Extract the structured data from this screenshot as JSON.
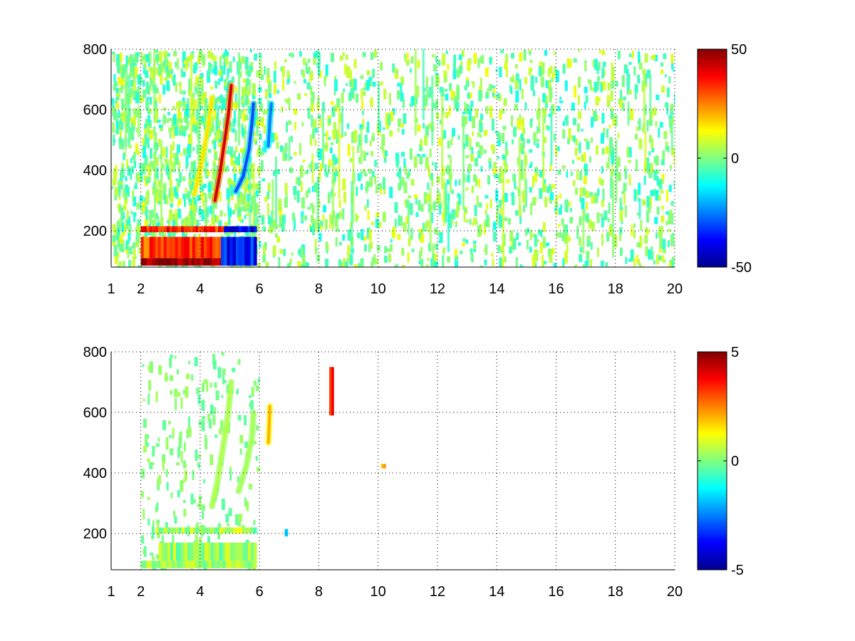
{
  "chart_data": [
    {
      "type": "heatmap",
      "title": "",
      "xlabel": "",
      "ylabel": "",
      "xlim": [
        1,
        20
      ],
      "ylim": [
        80,
        800
      ],
      "x_ticks": [
        1,
        2,
        4,
        6,
        8,
        10,
        12,
        14,
        16,
        18,
        20
      ],
      "y_ticks": [
        200,
        400,
        600,
        800
      ],
      "grid": true,
      "colormap": "jet",
      "clim": [
        -50,
        50
      ],
      "colorbar_ticks": [
        50,
        0,
        -50
      ],
      "features": [
        {
          "kind": "band",
          "x": [
            2.0,
            5.9
          ],
          "y": [
            85,
            110
          ],
          "value": 50
        },
        {
          "kind": "band",
          "x": [
            2.0,
            4.7
          ],
          "y": [
            110,
            180
          ],
          "value": 30
        },
        {
          "kind": "band",
          "x": [
            4.7,
            5.9
          ],
          "y": [
            85,
            180
          ],
          "value": -35
        },
        {
          "kind": "band",
          "x": [
            2.0,
            4.8
          ],
          "y": [
            195,
            215
          ],
          "value": 35
        },
        {
          "kind": "band",
          "x": [
            4.8,
            5.9
          ],
          "y": [
            195,
            215
          ],
          "value": -40
        },
        {
          "kind": "curve",
          "points": [
            [
              4.5,
              300
            ],
            [
              4.65,
              380
            ],
            [
              4.8,
              480
            ],
            [
              4.95,
              580
            ],
            [
              5.05,
              680
            ]
          ],
          "value": 42
        },
        {
          "kind": "curve",
          "points": [
            [
              5.2,
              330
            ],
            [
              5.45,
              380
            ],
            [
              5.65,
              470
            ],
            [
              5.75,
              560
            ],
            [
              5.8,
              620
            ]
          ],
          "value": -30
        },
        {
          "kind": "curve",
          "points": [
            [
              3.8,
              320
            ],
            [
              4.1,
              450
            ],
            [
              4.3,
              560
            ],
            [
              4.4,
              640
            ]
          ],
          "value": 15
        },
        {
          "kind": "curve",
          "points": [
            [
              6.3,
              480
            ],
            [
              6.35,
              560
            ],
            [
              6.4,
              620
            ]
          ],
          "value": -25
        }
      ]
    },
    {
      "type": "heatmap",
      "title": "",
      "xlabel": "",
      "ylabel": "",
      "xlim": [
        1,
        20
      ],
      "ylim": [
        80,
        800
      ],
      "x_ticks": [
        1,
        2,
        4,
        6,
        8,
        10,
        12,
        14,
        16,
        18,
        20
      ],
      "y_ticks": [
        200,
        400,
        600,
        800
      ],
      "grid": true,
      "colormap": "jet",
      "clim": [
        -5,
        5
      ],
      "colorbar_ticks": [
        5,
        0,
        -5
      ],
      "features": [
        {
          "kind": "band",
          "x": [
            2.0,
            5.9
          ],
          "y": [
            85,
            110
          ],
          "value": 0.3
        },
        {
          "kind": "band",
          "x": [
            2.6,
            5.9
          ],
          "y": [
            110,
            170
          ],
          "value": 0.3
        },
        {
          "kind": "band",
          "x": [
            2.5,
            5.9
          ],
          "y": [
            200,
            220
          ],
          "value": 0.3
        },
        {
          "kind": "curve",
          "points": [
            [
              4.4,
              290
            ],
            [
              4.6,
              380
            ],
            [
              4.8,
              500
            ],
            [
              4.95,
              600
            ],
            [
              5.05,
              700
            ]
          ],
          "value": 0.5
        },
        {
          "kind": "curve",
          "points": [
            [
              5.3,
              340
            ],
            [
              5.55,
              420
            ],
            [
              5.75,
              520
            ],
            [
              5.8,
              600
            ]
          ],
          "value": 0.4
        },
        {
          "kind": "curve",
          "points": [
            [
              6.3,
              500
            ],
            [
              6.33,
              560
            ],
            [
              6.35,
              620
            ]
          ],
          "value": 2.0
        },
        {
          "kind": "band",
          "x": [
            8.35,
            8.5
          ],
          "y": [
            590,
            750
          ],
          "value": 3.0
        },
        {
          "kind": "band",
          "x": [
            10.1,
            10.25
          ],
          "y": [
            415,
            430
          ],
          "value": 2.0
        },
        {
          "kind": "band",
          "x": [
            6.85,
            6.95
          ],
          "y": [
            190,
            215
          ],
          "value": -1.5
        }
      ]
    }
  ]
}
